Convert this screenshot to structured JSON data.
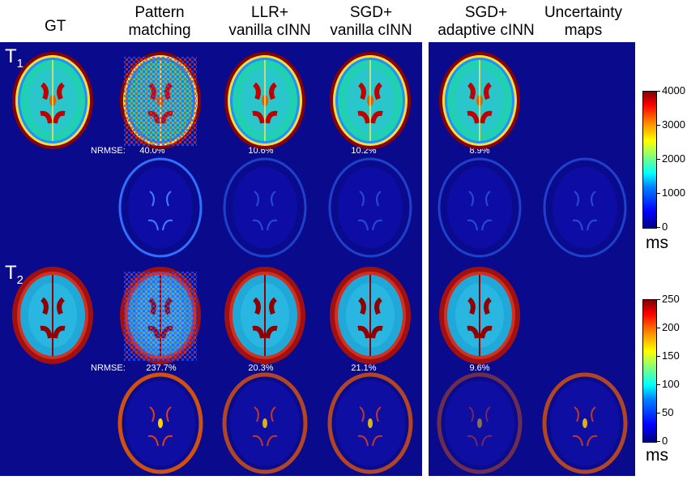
{
  "headers": [
    "GT",
    "Pattern\nmatching",
    "LLR+\nvanilla cINN",
    "SGD+\nvanilla cINN",
    "SGD+\nadaptive cINN",
    "Uncertainty\nmaps"
  ],
  "row_labels": {
    "t1": "T",
    "t1_sub": "1",
    "t2": "T",
    "t2_sub": "2"
  },
  "nrmse_label": "NRMSE:",
  "t1_nrmse": [
    "40.0%",
    "10.6%",
    "10.2%",
    "8.9%"
  ],
  "t2_nrmse": [
    "237.7%",
    "20.3%",
    "21.1%",
    "9.6%"
  ],
  "colorbar_t1": {
    "ticks": [
      "4000",
      "3000",
      "2000",
      "1000",
      "0"
    ],
    "unit": "ms",
    "range": [
      0,
      4000
    ]
  },
  "colorbar_t2": {
    "ticks": [
      "250",
      "200",
      "150",
      "100",
      "50",
      "0"
    ],
    "unit": "ms",
    "range": [
      0,
      250
    ]
  },
  "colors": {
    "background": "#0a0a8c"
  },
  "image_kinds": {
    "map": "t-map",
    "error": "error-map"
  }
}
